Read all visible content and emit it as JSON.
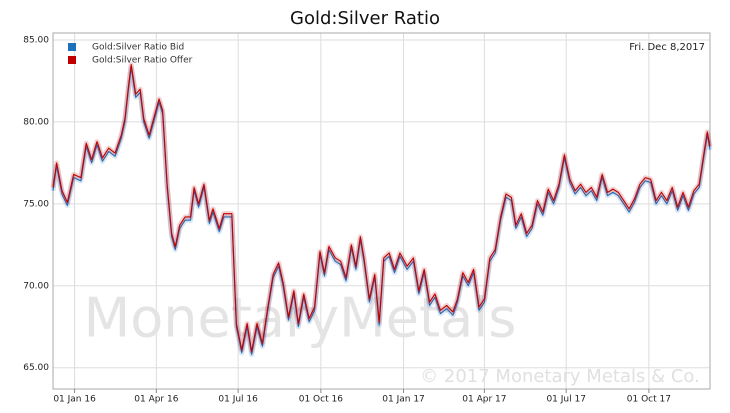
{
  "chart_data": {
    "type": "line",
    "title": "Gold:Silver Ratio",
    "annotation": "Fri. Dec 8,2017",
    "watermark": "MonetaryMetals",
    "copyright": "© 2017 Monetary Metals & Co.",
    "grid": true,
    "legend": "top-left",
    "xlim": [
      "2015-12-08",
      "2017-12-08"
    ],
    "xticks": [
      {
        "value": "2016-01-01",
        "label": "01 Jan 16"
      },
      {
        "value": "2016-04-01",
        "label": "01 Apr 16"
      },
      {
        "value": "2016-07-01",
        "label": "01 Jul 16"
      },
      {
        "value": "2016-10-01",
        "label": "01 Oct 16"
      },
      {
        "value": "2017-01-01",
        "label": "01 Jan 17"
      },
      {
        "value": "2017-04-01",
        "label": "01 Apr 17"
      },
      {
        "value": "2017-07-01",
        "label": "01 Jul 17"
      },
      {
        "value": "2017-10-01",
        "label": "01 Oct 17"
      }
    ],
    "ylim": [
      63.7,
      85
    ],
    "yticks": [
      {
        "value": 65,
        "label": "65.00"
      },
      {
        "value": 70,
        "label": "70.00"
      },
      {
        "value": 75,
        "label": "75.00"
      },
      {
        "value": 80,
        "label": "80.00"
      },
      {
        "value": 85,
        "label": "85.00"
      }
    ],
    "x": [
      "2015-12-08",
      "2015-12-12",
      "2015-12-18",
      "2015-12-24",
      "2015-12-31",
      "2016-01-08",
      "2016-01-14",
      "2016-01-20",
      "2016-01-26",
      "2016-02-01",
      "2016-02-08",
      "2016-02-15",
      "2016-02-22",
      "2016-02-26",
      "2016-03-01",
      "2016-03-04",
      "2016-03-09",
      "2016-03-14",
      "2016-03-18",
      "2016-03-24",
      "2016-03-29",
      "2016-04-04",
      "2016-04-08",
      "2016-04-13",
      "2016-04-18",
      "2016-04-22",
      "2016-04-27",
      "2016-05-03",
      "2016-05-09",
      "2016-05-13",
      "2016-05-18",
      "2016-05-24",
      "2016-05-30",
      "2016-06-03",
      "2016-06-10",
      "2016-06-15",
      "2016-06-24",
      "2016-06-29",
      "2016-07-05",
      "2016-07-11",
      "2016-07-16",
      "2016-07-22",
      "2016-07-28",
      "2016-08-03",
      "2016-08-09",
      "2016-08-15",
      "2016-08-20",
      "2016-08-26",
      "2016-09-01",
      "2016-09-06",
      "2016-09-12",
      "2016-09-18",
      "2016-09-24",
      "2016-09-30",
      "2016-10-05",
      "2016-10-10",
      "2016-10-17",
      "2016-10-23",
      "2016-10-29",
      "2016-11-04",
      "2016-11-09",
      "2016-11-14",
      "2016-11-18",
      "2016-11-24",
      "2016-11-30",
      "2016-12-05",
      "2016-12-10",
      "2016-12-16",
      "2016-12-22",
      "2016-12-28",
      "2017-01-05",
      "2017-01-12",
      "2017-01-18",
      "2017-01-24",
      "2017-01-30",
      "2017-02-05",
      "2017-02-11",
      "2017-02-18",
      "2017-02-25",
      "2017-03-02",
      "2017-03-08",
      "2017-03-14",
      "2017-03-20",
      "2017-03-26",
      "2017-04-01",
      "2017-04-07",
      "2017-04-13",
      "2017-04-19",
      "2017-04-25",
      "2017-05-01",
      "2017-05-06",
      "2017-05-12",
      "2017-05-18",
      "2017-05-24",
      "2017-05-30",
      "2017-06-05",
      "2017-06-11",
      "2017-06-17",
      "2017-06-23",
      "2017-06-29",
      "2017-07-05",
      "2017-07-11",
      "2017-07-17",
      "2017-07-23",
      "2017-07-29",
      "2017-08-04",
      "2017-08-10",
      "2017-08-16",
      "2017-08-22",
      "2017-08-28",
      "2017-09-03",
      "2017-09-09",
      "2017-09-15",
      "2017-09-21",
      "2017-09-27",
      "2017-10-03",
      "2017-10-09",
      "2017-10-15",
      "2017-10-21",
      "2017-10-27",
      "2017-11-02",
      "2017-11-08",
      "2017-11-14",
      "2017-11-20",
      "2017-11-26",
      "2017-12-01",
      "2017-12-05",
      "2017-12-08"
    ],
    "series": [
      {
        "name": "Gold:Silver Ratio Bid",
        "color": "#1f6fbf",
        "values": [
          75.8,
          77.3,
          75.6,
          74.9,
          76.6,
          76.4,
          78.5,
          77.5,
          78.6,
          77.6,
          78.2,
          77.9,
          79.0,
          80.0,
          82.0,
          83.3,
          81.5,
          81.8,
          80.0,
          79.0,
          80.0,
          81.2,
          80.5,
          76.0,
          73.0,
          72.2,
          73.5,
          74.0,
          74.0,
          75.8,
          74.8,
          76.0,
          73.8,
          74.5,
          73.3,
          74.2,
          74.2,
          67.5,
          65.9,
          67.5,
          65.8,
          67.5,
          66.3,
          68.5,
          70.5,
          71.2,
          70.0,
          67.9,
          69.5,
          67.5,
          69.3,
          67.8,
          68.5,
          71.9,
          70.6,
          72.2,
          71.5,
          71.3,
          70.3,
          72.3,
          71.0,
          72.8,
          71.5,
          69.0,
          70.5,
          67.6,
          71.5,
          71.8,
          70.8,
          71.8,
          71.0,
          71.5,
          69.5,
          70.8,
          68.8,
          69.3,
          68.3,
          68.6,
          68.2,
          69.0,
          70.6,
          70.0,
          70.8,
          68.5,
          69.0,
          71.5,
          72.0,
          74.0,
          75.4,
          75.2,
          73.5,
          74.2,
          73.0,
          73.5,
          75.0,
          74.3,
          75.7,
          75.0,
          76.0,
          77.8,
          76.3,
          75.6,
          76.0,
          75.5,
          75.8,
          75.2,
          76.6,
          75.5,
          75.7,
          75.5,
          75.0,
          74.5,
          75.1,
          76.0,
          76.4,
          76.3,
          75.0,
          75.5,
          75.0,
          75.8,
          74.6,
          75.5,
          74.6,
          75.6,
          76.0,
          77.8,
          79.2,
          78.3
        ]
      },
      {
        "name": "Gold:Silver Ratio Offer",
        "color": "#c00000",
        "values": [
          76.0,
          77.5,
          75.8,
          75.1,
          76.8,
          76.6,
          78.7,
          77.7,
          78.8,
          77.8,
          78.4,
          78.1,
          79.2,
          80.2,
          82.2,
          83.5,
          81.7,
          82.0,
          80.2,
          79.2,
          80.2,
          81.4,
          80.7,
          76.2,
          73.2,
          72.4,
          73.7,
          74.2,
          74.2,
          76.0,
          75.0,
          76.2,
          74.0,
          74.7,
          73.5,
          74.4,
          74.4,
          67.7,
          66.1,
          67.7,
          66.0,
          67.7,
          66.5,
          68.7,
          70.7,
          71.4,
          70.2,
          68.1,
          69.7,
          67.7,
          69.5,
          68.0,
          68.7,
          72.1,
          70.8,
          72.4,
          71.7,
          71.5,
          70.5,
          72.5,
          71.2,
          73.0,
          71.7,
          69.2,
          70.7,
          67.8,
          71.7,
          72.0,
          71.0,
          72.0,
          71.2,
          71.7,
          69.7,
          71.0,
          69.0,
          69.5,
          68.5,
          68.8,
          68.4,
          69.2,
          70.8,
          70.2,
          71.0,
          68.7,
          69.2,
          71.7,
          72.2,
          74.2,
          75.6,
          75.4,
          73.7,
          74.4,
          73.2,
          73.7,
          75.2,
          74.5,
          75.9,
          75.2,
          76.2,
          78.0,
          76.5,
          75.8,
          76.2,
          75.7,
          76.0,
          75.4,
          76.8,
          75.7,
          75.9,
          75.7,
          75.2,
          74.7,
          75.3,
          76.2,
          76.6,
          76.5,
          75.2,
          75.7,
          75.2,
          76.0,
          74.8,
          75.7,
          74.8,
          75.8,
          76.2,
          78.0,
          79.4,
          78.5
        ]
      }
    ]
  }
}
